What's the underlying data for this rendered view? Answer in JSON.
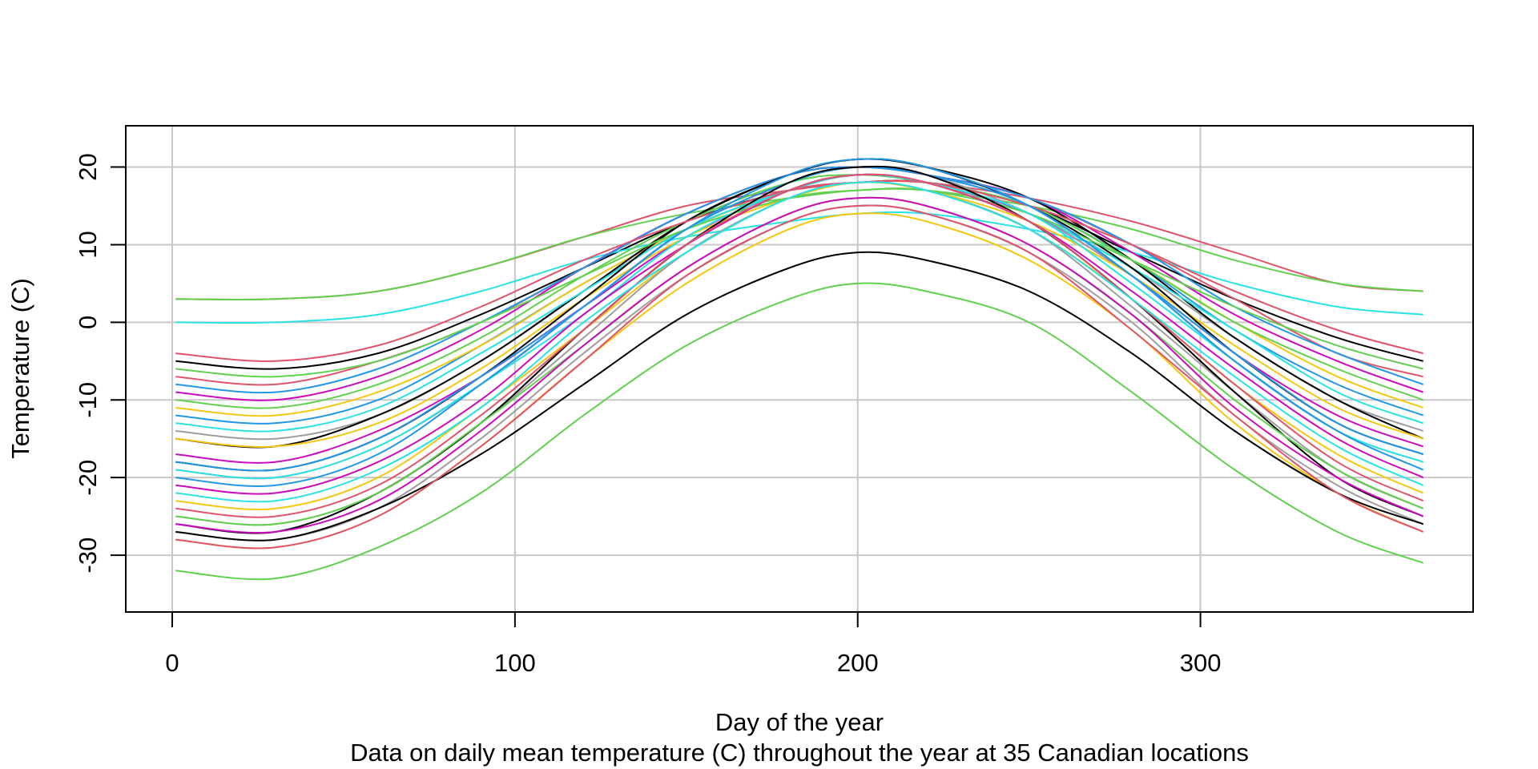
{
  "chart_data": {
    "type": "line",
    "title": "",
    "xlabel": "Day of the year",
    "ylabel": "Temperature (C)",
    "subtitle": "Data on daily mean temperature (C) throughout the year at 35 Canadian locations",
    "xlim": [
      1,
      365
    ],
    "ylim": [
      -35,
      23
    ],
    "xticks": [
      0,
      100,
      200,
      300
    ],
    "yticks": [
      -30,
      -20,
      -10,
      0,
      10,
      20
    ],
    "grid": true,
    "legend": "none",
    "x": [
      1,
      30,
      60,
      90,
      120,
      150,
      180,
      200,
      220,
      250,
      280,
      310,
      340,
      365
    ],
    "series": [
      {
        "color": "#000000",
        "values": [
          -5,
          -6,
          -4,
          1,
          7,
          13,
          17,
          18,
          18,
          15,
          9,
          3,
          -2,
          -5
        ]
      },
      {
        "color": "#DF536B",
        "values": [
          3,
          3,
          4,
          7,
          11,
          15,
          17,
          18,
          18,
          16,
          13,
          9,
          5,
          4
        ]
      },
      {
        "color": "#61D04F",
        "values": [
          3,
          3,
          4,
          7,
          11,
          14,
          16,
          17,
          17,
          15,
          12,
          8,
          5,
          4
        ]
      },
      {
        "color": "#2297E6",
        "values": [
          -12,
          -13,
          -10,
          -3,
          5,
          12,
          17,
          19,
          18,
          15,
          8,
          -1,
          -8,
          -12
        ]
      },
      {
        "color": "#28E2E5",
        "values": [
          0,
          0,
          1,
          4,
          8,
          11,
          13,
          14,
          14,
          12,
          9,
          5,
          2,
          1
        ]
      },
      {
        "color": "#CD0BBC",
        "values": [
          -9,
          -10,
          -7,
          -1,
          7,
          14,
          19,
          20,
          19,
          16,
          9,
          1,
          -5,
          -9
        ]
      },
      {
        "color": "#F5C710",
        "values": [
          -11,
          -12,
          -9,
          -3,
          5,
          12,
          17,
          19,
          18,
          15,
          8,
          0,
          -7,
          -11
        ]
      },
      {
        "color": "#9E9E9E",
        "values": [
          -14,
          -15,
          -12,
          -5,
          4,
          12,
          17,
          19,
          18,
          14,
          7,
          -2,
          -10,
          -14
        ]
      },
      {
        "color": "#000000",
        "values": [
          -15,
          -16,
          -12,
          -5,
          4,
          13,
          19,
          21,
          20,
          16,
          8,
          -2,
          -10,
          -15
        ]
      },
      {
        "color": "#DF536B",
        "values": [
          -7,
          -8,
          -5,
          0,
          7,
          14,
          19,
          20,
          19,
          16,
          10,
          3,
          -4,
          -7
        ]
      },
      {
        "color": "#61D04F",
        "values": [
          -10,
          -11,
          -8,
          -2,
          6,
          13,
          18,
          19,
          18,
          15,
          8,
          0,
          -6,
          -10
        ]
      },
      {
        "color": "#2297E6",
        "values": [
          -8,
          -9,
          -6,
          0,
          7,
          14,
          19,
          20,
          19,
          16,
          10,
          2,
          -4,
          -8
        ]
      },
      {
        "color": "#28E2E5",
        "values": [
          -13,
          -14,
          -11,
          -4,
          4,
          12,
          17,
          19,
          18,
          14,
          7,
          -1,
          -9,
          -13
        ]
      },
      {
        "color": "#CD0BBC",
        "values": [
          -17,
          -18,
          -14,
          -7,
          2,
          11,
          17,
          19,
          18,
          14,
          6,
          -4,
          -12,
          -16
        ]
      },
      {
        "color": "#F5C710",
        "values": [
          -15,
          -16,
          -13,
          -6,
          3,
          11,
          16,
          18,
          17,
          13,
          6,
          -3,
          -11,
          -15
        ]
      },
      {
        "color": "#9E9E9E",
        "values": [
          -19,
          -20,
          -16,
          -8,
          2,
          12,
          18,
          20,
          19,
          14,
          6,
          -5,
          -14,
          -18
        ]
      },
      {
        "color": "#000000",
        "values": [
          -18,
          -19,
          -15,
          -7,
          3,
          13,
          19,
          21,
          20,
          15,
          7,
          -4,
          -13,
          -17
        ]
      },
      {
        "color": "#DF536B",
        "values": [
          -4,
          -5,
          -3,
          2,
          8,
          13,
          17,
          18,
          18,
          15,
          10,
          4,
          -1,
          -4
        ]
      },
      {
        "color": "#61D04F",
        "values": [
          -6,
          -7,
          -5,
          0,
          6,
          12,
          16,
          17,
          17,
          14,
          8,
          2,
          -3,
          -6
        ]
      },
      {
        "color": "#2297E6",
        "values": [
          -18,
          -19,
          -15,
          -7,
          2,
          12,
          18,
          20,
          19,
          15,
          6,
          -4,
          -13,
          -17
        ]
      },
      {
        "color": "#28E2E5",
        "values": [
          -19,
          -20,
          -16,
          -8,
          1,
          11,
          17,
          19,
          18,
          14,
          5,
          -5,
          -14,
          -18
        ]
      },
      {
        "color": "#CD0BBC",
        "values": [
          -21,
          -22,
          -18,
          -10,
          1,
          10,
          17,
          19,
          18,
          13,
          4,
          -6,
          -15,
          -20
        ]
      },
      {
        "color": "#F5C710",
        "values": [
          -23,
          -24,
          -20,
          -11,
          -1,
          9,
          16,
          18,
          17,
          12,
          3,
          -8,
          -17,
          -22
        ]
      },
      {
        "color": "#9E9E9E",
        "values": [
          -25,
          -26,
          -22,
          -13,
          -2,
          9,
          16,
          18,
          17,
          12,
          2,
          -9,
          -19,
          -24
        ]
      },
      {
        "color": "#000000",
        "values": [
          -26,
          -27,
          -22,
          -13,
          -1,
          10,
          18,
          20,
          19,
          13,
          3,
          -9,
          -20,
          -25
        ]
      },
      {
        "color": "#DF536B",
        "values": [
          -24,
          -25,
          -21,
          -12,
          -1,
          10,
          17,
          19,
          18,
          13,
          3,
          -8,
          -18,
          -23
        ]
      },
      {
        "color": "#61D04F",
        "values": [
          -25,
          -26,
          -22,
          -13,
          -3,
          7,
          14,
          16,
          15,
          10,
          1,
          -10,
          -19,
          -24
        ]
      },
      {
        "color": "#2297E6",
        "values": [
          -20,
          -21,
          -17,
          -8,
          2,
          12,
          19,
          21,
          20,
          15,
          6,
          -5,
          -14,
          -19
        ]
      },
      {
        "color": "#28E2E5",
        "values": [
          -22,
          -23,
          -19,
          -11,
          0,
          9,
          16,
          18,
          17,
          12,
          3,
          -7,
          -16,
          -21
        ]
      },
      {
        "color": "#CD0BBC",
        "values": [
          -26,
          -27,
          -23,
          -14,
          -3,
          7,
          14,
          16,
          15,
          10,
          1,
          -11,
          -20,
          -25
        ]
      },
      {
        "color": "#F5C710",
        "values": [
          -28,
          -29,
          -25,
          -16,
          -5,
          5,
          12,
          14,
          13,
          8,
          -1,
          -13,
          -22,
          -27
        ]
      },
      {
        "color": "#9E9E9E",
        "values": [
          -27,
          -28,
          -24,
          -15,
          -4,
          6,
          13,
          15,
          14,
          9,
          0,
          -12,
          -21,
          -26
        ]
      },
      {
        "color": "#000000",
        "values": [
          -27,
          -28,
          -24,
          -17,
          -8,
          1,
          7,
          9,
          8,
          4,
          -4,
          -14,
          -22,
          -26
        ]
      },
      {
        "color": "#DF536B",
        "values": [
          -28,
          -29,
          -25,
          -16,
          -5,
          6,
          13,
          15,
          14,
          9,
          -1,
          -12,
          -22,
          -27
        ]
      },
      {
        "color": "#61D04F",
        "values": [
          -32,
          -33,
          -29,
          -22,
          -12,
          -3,
          3,
          5,
          4,
          0,
          -9,
          -19,
          -27,
          -31
        ]
      }
    ]
  }
}
